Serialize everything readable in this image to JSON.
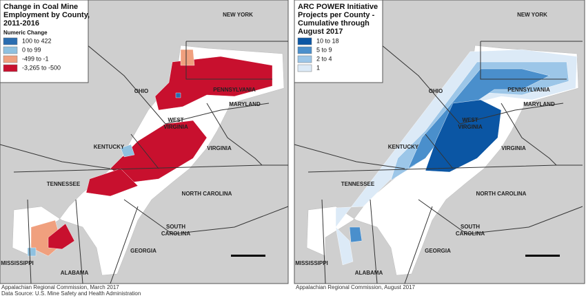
{
  "maps": [
    {
      "title": [
        "Change in Coal Mine",
        "Employment by County,",
        "2011-2016"
      ],
      "legend": {
        "title": "Numeric Change",
        "items": [
          {
            "label": "100 to 422",
            "color": "#2a6db0"
          },
          {
            "label": "0 to 99",
            "color": "#8fc1e0"
          },
          {
            "label": "-499 to -1",
            "color": "#f0a07e"
          },
          {
            "label": "-3,265 to -500",
            "color": "#c8102e"
          }
        ]
      },
      "states": [
        "NEW YORK",
        "PENNSYLVANIA",
        "OHIO",
        "MARYLAND",
        "WEST",
        "VIRGINIA",
        "KENTUCKY",
        "VIRGINIA",
        "TENNESSEE",
        "NORTH CAROLINA",
        "SOUTH",
        "CAROLINA",
        "GEORGIA",
        "ALABAMA",
        "MISSISSIPPI"
      ],
      "source": [
        "Appalachian Regional Commission, March 2017",
        "Data Source: U.S. Mine Safety and Health Administration"
      ]
    },
    {
      "title": [
        "ARC POWER Initiative",
        "Projects per County -",
        "Cumulative through",
        "August 2017"
      ],
      "legend": {
        "items": [
          {
            "label": "10 to 18",
            "color": "#0b56a4"
          },
          {
            "label": "5 to 9",
            "color": "#4a8fcc"
          },
          {
            "label": "2 to 4",
            "color": "#9cc6e8"
          },
          {
            "label": "1",
            "color": "#dceaf7"
          }
        ]
      },
      "states": [
        "NEW YORK",
        "PENNSYLVANIA",
        "OHIO",
        "MARYLAND",
        "WEST",
        "VIRGINIA",
        "KENTUCKY",
        "VIRGINIA",
        "TENNESSEE",
        "NORTH CAROLINA",
        "SOUTH",
        "CAROLINA",
        "GEORGIA",
        "ALABAMA",
        "MISSISSIPPI"
      ],
      "source": [
        "Appalachian Regional Commission, August 2017"
      ]
    }
  ]
}
